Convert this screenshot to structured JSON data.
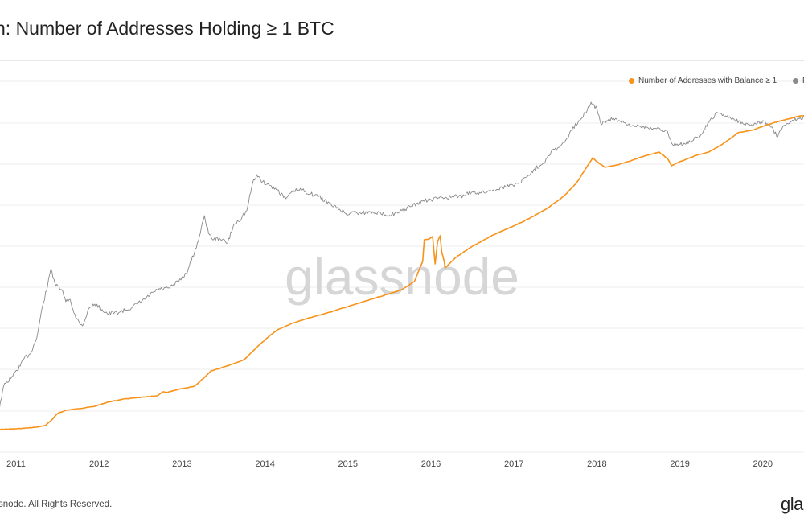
{
  "header": {
    "title": "n: Number of Addresses Holding ≥ 1 BTC"
  },
  "footer": {
    "copyright": "snode. All Rights Reserved.",
    "brand": "gla"
  },
  "watermark": "glassnode",
  "colors": {
    "addresses": "#f7931a",
    "price": "#8a8a8a",
    "grid": "#ececec",
    "text": "#222222"
  },
  "chart_data": {
    "type": "line",
    "title": "n: Number of Addresses Holding ≥ 1 BTC",
    "x_ticks": [
      "2011",
      "2012",
      "2013",
      "2014",
      "2015",
      "2016",
      "2017",
      "2018",
      "2019",
      "2020"
    ],
    "x_range": [
      2010.8,
      2020.55
    ],
    "y_scale_addresses": "linear",
    "y_scale_price": "log",
    "grid": true,
    "legend_position": "top-right",
    "series": [
      {
        "name": "Number of Addresses with Balance ≥ 1",
        "color": "#f7931a",
        "axis": "left",
        "points": [
          [
            2010.75,
            534
          ],
          [
            2011.0,
            533
          ],
          [
            2011.25,
            531
          ],
          [
            2011.35,
            529
          ],
          [
            2011.42,
            523
          ],
          [
            2011.5,
            514
          ],
          [
            2011.6,
            510
          ],
          [
            2011.75,
            508
          ],
          [
            2011.95,
            505
          ],
          [
            2012.1,
            500
          ],
          [
            2012.3,
            496
          ],
          [
            2012.5,
            494
          ],
          [
            2012.6,
            493
          ],
          [
            2012.7,
            492
          ],
          [
            2012.77,
            487
          ],
          [
            2012.82,
            488
          ],
          [
            2012.95,
            484
          ],
          [
            2013.15,
            480
          ],
          [
            2013.25,
            471
          ],
          [
            2013.35,
            461
          ],
          [
            2013.45,
            458
          ],
          [
            2013.6,
            453
          ],
          [
            2013.75,
            447
          ],
          [
            2013.85,
            437
          ],
          [
            2013.95,
            427
          ],
          [
            2014.05,
            418
          ],
          [
            2014.15,
            410
          ],
          [
            2014.3,
            403
          ],
          [
            2014.5,
            396
          ],
          [
            2014.75,
            389
          ],
          [
            2015.0,
            381
          ],
          [
            2015.25,
            373
          ],
          [
            2015.5,
            365
          ],
          [
            2015.65,
            360
          ],
          [
            2015.8,
            350
          ],
          [
            2015.9,
            325
          ],
          [
            2015.92,
            298
          ],
          [
            2015.98,
            297
          ],
          [
            2016.02,
            294
          ],
          [
            2016.05,
            328
          ],
          [
            2016.08,
            300
          ],
          [
            2016.11,
            293
          ],
          [
            2016.13,
            313
          ],
          [
            2016.16,
            325
          ],
          [
            2016.17,
            333
          ],
          [
            2016.3,
            320
          ],
          [
            2016.5,
            306
          ],
          [
            2016.75,
            292
          ],
          [
            2016.95,
            283
          ],
          [
            2017.1,
            276
          ],
          [
            2017.25,
            268
          ],
          [
            2017.4,
            259
          ],
          [
            2017.6,
            244
          ],
          [
            2017.75,
            228
          ],
          [
            2017.85,
            212
          ],
          [
            2017.95,
            196
          ],
          [
            2018.0,
            201
          ],
          [
            2018.1,
            208
          ],
          [
            2018.25,
            205
          ],
          [
            2018.4,
            200
          ],
          [
            2018.6,
            193
          ],
          [
            2018.75,
            189
          ],
          [
            2018.85,
            197
          ],
          [
            2018.9,
            206
          ],
          [
            2019.0,
            201
          ],
          [
            2019.2,
            193
          ],
          [
            2019.35,
            189
          ],
          [
            2019.5,
            180
          ],
          [
            2019.6,
            173
          ],
          [
            2019.7,
            165
          ],
          [
            2019.9,
            161
          ],
          [
            2020.0,
            157
          ],
          [
            2020.15,
            152
          ],
          [
            2020.3,
            148
          ],
          [
            2020.45,
            144
          ],
          [
            2020.55,
            143
          ]
        ]
      },
      {
        "name": "P",
        "color": "#8a8a8a",
        "axis": "right",
        "points": [
          [
            2010.75,
            535
          ],
          [
            2010.85,
            480
          ],
          [
            2010.95,
            468
          ],
          [
            2011.05,
            455
          ],
          [
            2011.1,
            445
          ],
          [
            2011.17,
            440
          ],
          [
            2011.25,
            420
          ],
          [
            2011.32,
            380
          ],
          [
            2011.38,
            355
          ],
          [
            2011.42,
            334
          ],
          [
            2011.48,
            355
          ],
          [
            2011.55,
            360
          ],
          [
            2011.6,
            375
          ],
          [
            2011.65,
            372
          ],
          [
            2011.72,
            395
          ],
          [
            2011.8,
            405
          ],
          [
            2011.88,
            383
          ],
          [
            2011.95,
            378
          ],
          [
            2012.1,
            390
          ],
          [
            2012.25,
            388
          ],
          [
            2012.4,
            382
          ],
          [
            2012.55,
            372
          ],
          [
            2012.7,
            360
          ],
          [
            2012.85,
            358
          ],
          [
            2012.95,
            350
          ],
          [
            2013.05,
            340
          ],
          [
            2013.15,
            314
          ],
          [
            2013.22,
            290
          ],
          [
            2013.27,
            268
          ],
          [
            2013.32,
            290
          ],
          [
            2013.38,
            298
          ],
          [
            2013.45,
            296
          ],
          [
            2013.55,
            302
          ],
          [
            2013.62,
            280
          ],
          [
            2013.68,
            275
          ],
          [
            2013.78,
            262
          ],
          [
            2013.85,
            228
          ],
          [
            2013.9,
            217
          ],
          [
            2013.97,
            226
          ],
          [
            2014.05,
            230
          ],
          [
            2014.15,
            236
          ],
          [
            2014.25,
            247
          ],
          [
            2014.35,
            237
          ],
          [
            2014.45,
            236
          ],
          [
            2014.55,
            241
          ],
          [
            2014.65,
            244
          ],
          [
            2014.8,
            255
          ],
          [
            2014.9,
            260
          ],
          [
            2015.0,
            267
          ],
          [
            2015.05,
            263
          ],
          [
            2015.15,
            265
          ],
          [
            2015.3,
            263
          ],
          [
            2015.45,
            267
          ],
          [
            2015.6,
            265
          ],
          [
            2015.75,
            257
          ],
          [
            2015.9,
            250
          ],
          [
            2016.0,
            248
          ],
          [
            2016.1,
            246
          ],
          [
            2016.25,
            245
          ],
          [
            2016.4,
            243
          ],
          [
            2016.5,
            238
          ],
          [
            2016.6,
            240
          ],
          [
            2016.75,
            236
          ],
          [
            2016.9,
            232
          ],
          [
            2017.05,
            228
          ],
          [
            2017.15,
            220
          ],
          [
            2017.25,
            210
          ],
          [
            2017.35,
            203
          ],
          [
            2017.45,
            188
          ],
          [
            2017.55,
            183
          ],
          [
            2017.62,
            175
          ],
          [
            2017.7,
            162
          ],
          [
            2017.78,
            150
          ],
          [
            2017.86,
            140
          ],
          [
            2017.93,
            127
          ],
          [
            2018.0,
            135
          ],
          [
            2018.05,
            155
          ],
          [
            2018.12,
            150
          ],
          [
            2018.2,
            147
          ],
          [
            2018.3,
            152
          ],
          [
            2018.4,
            157
          ],
          [
            2018.5,
            156
          ],
          [
            2018.6,
            158
          ],
          [
            2018.72,
            160
          ],
          [
            2018.85,
            163
          ],
          [
            2018.9,
            178
          ],
          [
            2018.98,
            181
          ],
          [
            2019.05,
            178
          ],
          [
            2019.15,
            175
          ],
          [
            2019.25,
            168
          ],
          [
            2019.35,
            152
          ],
          [
            2019.45,
            140
          ],
          [
            2019.55,
            144
          ],
          [
            2019.65,
            148
          ],
          [
            2019.75,
            152
          ],
          [
            2019.85,
            156
          ],
          [
            2019.93,
            154
          ],
          [
            2020.0,
            150
          ],
          [
            2020.1,
            158
          ],
          [
            2020.18,
            170
          ],
          [
            2020.25,
            156
          ],
          [
            2020.35,
            150
          ],
          [
            2020.45,
            146
          ],
          [
            2020.55,
            147
          ]
        ]
      }
    ]
  }
}
